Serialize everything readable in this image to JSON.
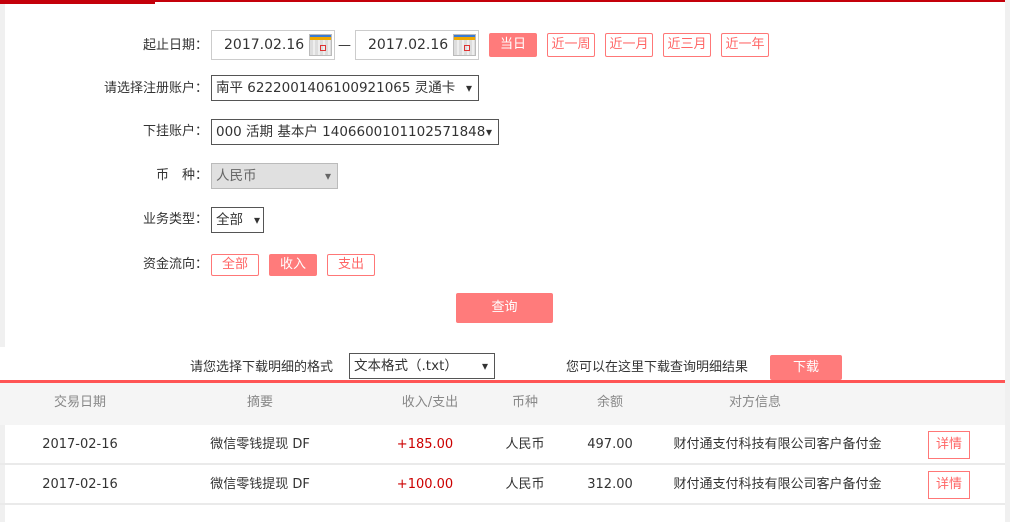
{
  "form": {
    "date_label": "起止日期：",
    "start_date": "2017.02.16",
    "separator": "—",
    "end_date": "2017.02.16",
    "quick_ranges": [
      {
        "label": "当日",
        "active": true
      },
      {
        "label": "近一周",
        "active": false
      },
      {
        "label": "近一月",
        "active": false
      },
      {
        "label": "近三月",
        "active": false
      },
      {
        "label": "近一年",
        "active": false
      }
    ],
    "account_label": "请选择注册账户：",
    "account_value": "南平 6222001406100921065 灵通卡",
    "sub_account_label": "下挂账户：",
    "sub_account_value": "000 活期 基本户 1406600101102571848",
    "currency_label": "币　种：",
    "currency_value": "人民币",
    "biz_type_label": "业务类型：",
    "biz_type_value": "全部",
    "flow_label": "资金流向：",
    "flow_options": [
      {
        "label": "全部",
        "active": false
      },
      {
        "label": "收入",
        "active": true
      },
      {
        "label": "支出",
        "active": false
      }
    ],
    "query_button": "查询"
  },
  "download": {
    "format_label": "请您选择下载明细的格式",
    "format_value": "文本格式（.txt）",
    "hint": "您可以在这里下载查询明细结果",
    "button": "下载"
  },
  "table": {
    "headers": [
      "交易日期",
      "摘要",
      "收入/支出",
      "币种",
      "余额",
      "对方信息"
    ],
    "rows": [
      {
        "date": "2017-02-16",
        "summary": "微信零钱提现 DF",
        "amount": "+185.00",
        "currency": "人民币",
        "balance": "497.00",
        "counterparty": "财付通支付科技有限公司客户备付金",
        "action": "详情"
      },
      {
        "date": "2017-02-16",
        "summary": "微信零钱提现 DF",
        "amount": "+100.00",
        "currency": "人民币",
        "balance": "312.00",
        "counterparty": "财付通支付科技有限公司客户备付金",
        "action": "详情"
      }
    ]
  },
  "colors": {
    "accent": "#ff7b7b",
    "top_bar": "#c4000a",
    "amount": "#cc0000"
  }
}
